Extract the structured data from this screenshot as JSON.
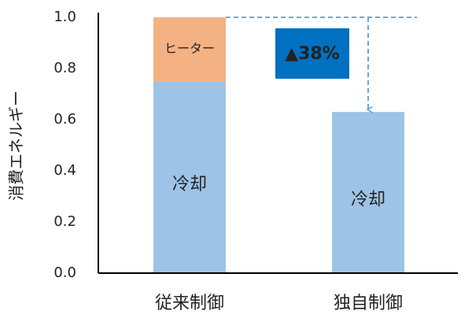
{
  "chart_data": {
    "type": "stacked_bar",
    "y_label": "消費エネルギー",
    "categories": [
      "従来制御",
      "独自制御"
    ],
    "series": [
      {
        "name": "冷却",
        "color": "#9dc3e6",
        "values": [
          0.75,
          0.63
        ]
      },
      {
        "name": "ヒーター",
        "color": "#f4b183",
        "values": [
          0.25,
          null
        ]
      }
    ],
    "ylim": [
      0,
      1
    ],
    "yticks": [
      {
        "value": 0,
        "label": "0.0"
      },
      {
        "value": 0.2,
        "label": "0.2"
      },
      {
        "value": 0.4,
        "label": "0.4"
      },
      {
        "value": 0.6,
        "label": "0.6"
      },
      {
        "value": 0.8,
        "label": "0.8"
      },
      {
        "value": 1,
        "label": "1.0"
      }
    ],
    "grid": false,
    "annotation": {
      "text": "▲38%",
      "color": "#0070c0"
    }
  }
}
